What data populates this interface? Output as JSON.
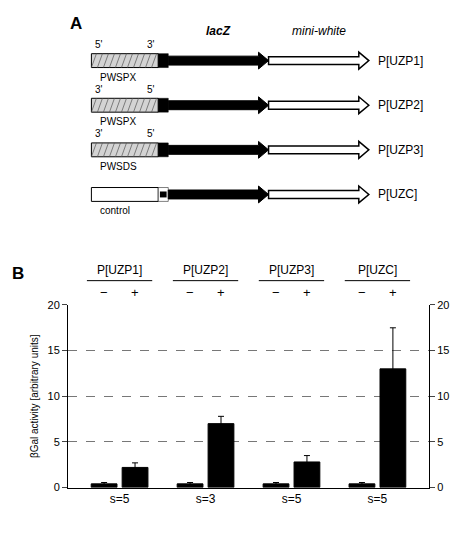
{
  "chart_data": [
    {
      "type": "diagram",
      "title": "A",
      "annotations": [
        "lacZ",
        "mini-white"
      ],
      "categories": [
        "P[UZP1]",
        "P[UZP2]",
        "P[UZP3]",
        "P[UZC]"
      ],
      "labels_5prime": [
        "5'",
        "3'",
        "3'",
        null
      ],
      "labels_3prime": [
        "3'",
        "5'",
        "5'",
        null
      ],
      "element_labels": [
        "PWSPX",
        "PWSPX",
        "PWSDS",
        "control"
      ]
    },
    {
      "type": "bar",
      "title": "B",
      "categories": [
        "P[UZP1]",
        "P[UZP2]",
        "P[UZP3]",
        "P[UZC]"
      ],
      "annotations": [
        "s=5",
        "s=3",
        "s=5",
        "s=5"
      ],
      "series": [
        {
          "name": "−",
          "color": "#000000",
          "values": [
            0.4,
            0.4,
            0.4,
            0.4
          ],
          "errors": [
            0.15,
            0.15,
            0.15,
            0.15
          ]
        },
        {
          "name": "+",
          "color": "#000000",
          "values": [
            2.2,
            7.0,
            2.8,
            13.0
          ],
          "errors": [
            0.5,
            0.8,
            0.7,
            4.5
          ]
        }
      ],
      "ylabel": "βGal activity [arbitrary units]",
      "ylim": [
        0,
        20
      ],
      "yticks": [
        0,
        5,
        10,
        15,
        20
      ],
      "y2lim": [
        0,
        20
      ],
      "y2ticks": [
        0,
        5,
        10,
        15,
        20
      ],
      "grid": true
    }
  ]
}
